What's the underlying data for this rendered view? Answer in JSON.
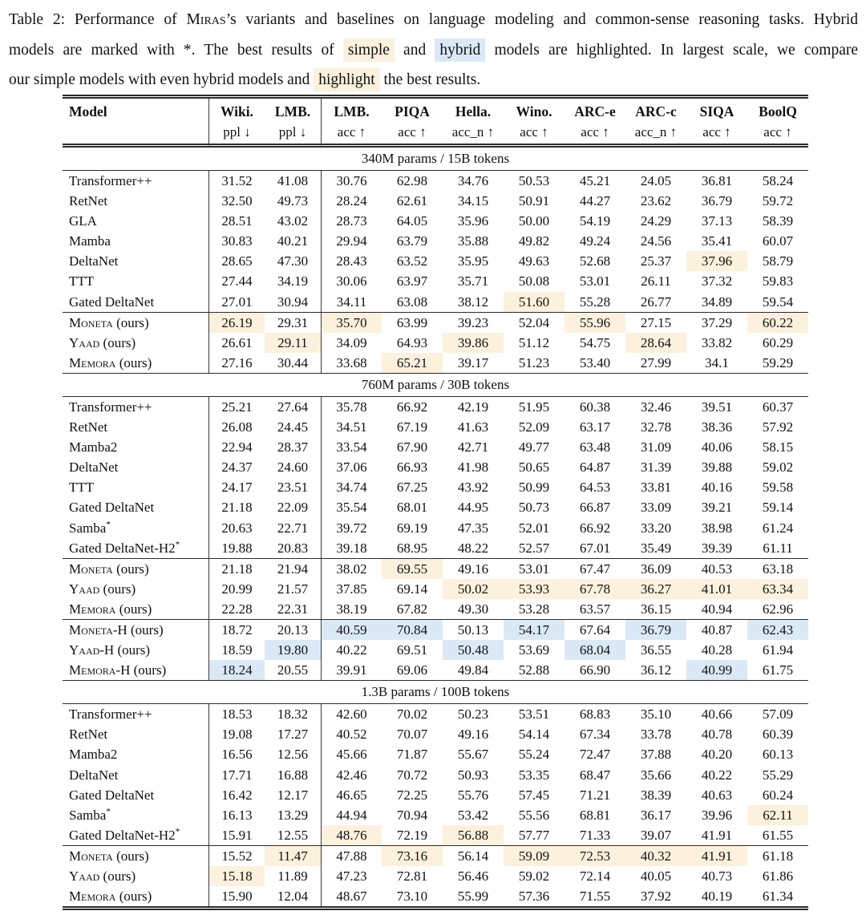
{
  "colors": {
    "highlight_yellow": "#fbf1dc",
    "highlight_blue": "#dbe9f6",
    "rule": "#2b2b2b",
    "text": "#111111",
    "background": "#ffffff"
  },
  "caption": {
    "lines": [
      {
        "justify": true,
        "segments": [
          {
            "text": "Table 2: Performance of "
          },
          {
            "text": "Miras",
            "sc": true
          },
          {
            "text": "’s variants and baselines on language modeling and common-sense reasoning tasks. Hybrid"
          }
        ]
      },
      {
        "justify": true,
        "segments": [
          {
            "text": "models are marked with *. The best results of "
          },
          {
            "text": "simple",
            "hl": "yellow"
          },
          {
            "text": " and "
          },
          {
            "text": "hybrid",
            "hl": "blue"
          },
          {
            "text": " models are highlighted. In largest scale, we compare"
          }
        ]
      },
      {
        "justify": false,
        "segments": [
          {
            "text": "our simple models with even hybrid models and "
          },
          {
            "text": "highlight",
            "hl": "yellow"
          },
          {
            "text": " the best results."
          }
        ]
      }
    ]
  },
  "table": {
    "columns": [
      {
        "label": "Model",
        "sub": ""
      },
      {
        "label": "Wiki.",
        "sub": "ppl ↓"
      },
      {
        "label": "LMB.",
        "sub": "ppl ↓"
      },
      {
        "label": "LMB.",
        "sub": "acc ↑"
      },
      {
        "label": "PIQA",
        "sub": "acc ↑"
      },
      {
        "label": "Hella.",
        "sub": "acc_n ↑"
      },
      {
        "label": "Wino.",
        "sub": "acc ↑"
      },
      {
        "label": "ARC-e",
        "sub": "acc ↑"
      },
      {
        "label": "ARC-c",
        "sub": "acc_n ↑"
      },
      {
        "label": "SIQA",
        "sub": "acc ↑"
      },
      {
        "label": "BoolQ",
        "sub": "acc ↑"
      }
    ],
    "sections": [
      {
        "label": "340M params / 15B tokens",
        "groups": [
          {
            "rows": [
              {
                "name": "Transformer++",
                "values": [
                  "31.52",
                  "41.08",
                  "30.76",
                  "62.98",
                  "34.76",
                  "50.53",
                  "45.21",
                  "24.05",
                  "36.81",
                  "58.24"
                ],
                "hl": {}
              },
              {
                "name": "RetNet",
                "values": [
                  "32.50",
                  "49.73",
                  "28.24",
                  "62.61",
                  "34.15",
                  "50.91",
                  "44.27",
                  "23.62",
                  "36.79",
                  "59.72"
                ],
                "hl": {}
              },
              {
                "name": "GLA",
                "values": [
                  "28.51",
                  "43.02",
                  "28.73",
                  "64.05",
                  "35.96",
                  "50.00",
                  "54.19",
                  "24.29",
                  "37.13",
                  "58.39"
                ],
                "hl": {}
              },
              {
                "name": "Mamba",
                "values": [
                  "30.83",
                  "40.21",
                  "29.94",
                  "63.79",
                  "35.88",
                  "49.82",
                  "49.24",
                  "24.56",
                  "35.41",
                  "60.07"
                ],
                "hl": {}
              },
              {
                "name": "DeltaNet",
                "values": [
                  "28.65",
                  "47.30",
                  "28.43",
                  "63.52",
                  "35.95",
                  "49.63",
                  "52.68",
                  "25.37",
                  "37.96",
                  "58.79"
                ],
                "hl": {
                  "8": "yellow"
                }
              },
              {
                "name": "TTT",
                "values": [
                  "27.44",
                  "34.19",
                  "30.06",
                  "63.97",
                  "35.71",
                  "50.08",
                  "53.01",
                  "26.11",
                  "37.32",
                  "59.83"
                ],
                "hl": {}
              },
              {
                "name": "Gated DeltaNet",
                "values": [
                  "27.01",
                  "30.94",
                  "34.11",
                  "63.08",
                  "38.12",
                  "51.60",
                  "55.28",
                  "26.77",
                  "34.89",
                  "59.54"
                ],
                "hl": {
                  "5": "yellow"
                }
              }
            ]
          },
          {
            "rows": [
              {
                "name": "Moneta",
                "sc": true,
                "suffix": " (ours)",
                "values": [
                  "26.19",
                  "29.31",
                  "35.70",
                  "63.99",
                  "39.23",
                  "52.04",
                  "55.96",
                  "27.15",
                  "37.29",
                  "60.22"
                ],
                "hl": {
                  "0": "yellow",
                  "2": "yellow",
                  "6": "yellow",
                  "9": "yellow"
                }
              },
              {
                "name": "Yaad",
                "sc": true,
                "suffix": " (ours)",
                "values": [
                  "26.61",
                  "29.11",
                  "34.09",
                  "64.93",
                  "39.86",
                  "51.12",
                  "54.75",
                  "28.64",
                  "33.82",
                  "60.29"
                ],
                "hl": {
                  "1": "yellow",
                  "4": "yellow",
                  "7": "yellow"
                }
              },
              {
                "name": "Memora",
                "sc": true,
                "suffix": " (ours)",
                "values": [
                  "27.16",
                  "30.44",
                  "33.68",
                  "65.21",
                  "39.17",
                  "51.23",
                  "53.40",
                  "27.99",
                  "34.1",
                  "59.29"
                ],
                "hl": {
                  "3": "yellow"
                }
              }
            ]
          }
        ]
      },
      {
        "label": "760M params / 30B tokens",
        "groups": [
          {
            "rows": [
              {
                "name": "Transformer++",
                "values": [
                  "25.21",
                  "27.64",
                  "35.78",
                  "66.92",
                  "42.19",
                  "51.95",
                  "60.38",
                  "32.46",
                  "39.51",
                  "60.37"
                ],
                "hl": {}
              },
              {
                "name": "RetNet",
                "values": [
                  "26.08",
                  "24.45",
                  "34.51",
                  "67.19",
                  "41.63",
                  "52.09",
                  "63.17",
                  "32.78",
                  "38.36",
                  "57.92"
                ],
                "hl": {}
              },
              {
                "name": "Mamba2",
                "values": [
                  "22.94",
                  "28.37",
                  "33.54",
                  "67.90",
                  "42.71",
                  "49.77",
                  "63.48",
                  "31.09",
                  "40.06",
                  "58.15"
                ],
                "hl": {}
              },
              {
                "name": "DeltaNet",
                "values": [
                  "24.37",
                  "24.60",
                  "37.06",
                  "66.93",
                  "41.98",
                  "50.65",
                  "64.87",
                  "31.39",
                  "39.88",
                  "59.02"
                ],
                "hl": {}
              },
              {
                "name": "TTT",
                "values": [
                  "24.17",
                  "23.51",
                  "34.74",
                  "67.25",
                  "43.92",
                  "50.99",
                  "64.53",
                  "33.81",
                  "40.16",
                  "59.58"
                ],
                "hl": {}
              },
              {
                "name": "Gated DeltaNet",
                "values": [
                  "21.18",
                  "22.09",
                  "35.54",
                  "68.01",
                  "44.95",
                  "50.73",
                  "66.87",
                  "33.09",
                  "39.21",
                  "59.14"
                ],
                "hl": {}
              },
              {
                "name": "Samba",
                "sup": "*",
                "values": [
                  "20.63",
                  "22.71",
                  "39.72",
                  "69.19",
                  "47.35",
                  "52.01",
                  "66.92",
                  "33.20",
                  "38.98",
                  "61.24"
                ],
                "hl": {}
              },
              {
                "name": "Gated DeltaNet-H2",
                "sup": "*",
                "values": [
                  "19.88",
                  "20.83",
                  "39.18",
                  "68.95",
                  "48.22",
                  "52.57",
                  "67.01",
                  "35.49",
                  "39.39",
                  "61.11"
                ],
                "hl": {}
              }
            ]
          },
          {
            "rows": [
              {
                "name": "Moneta",
                "sc": true,
                "suffix": " (ours)",
                "values": [
                  "21.18",
                  "21.94",
                  "38.02",
                  "69.55",
                  "49.16",
                  "53.01",
                  "67.47",
                  "36.09",
                  "40.53",
                  "63.18"
                ],
                "hl": {
                  "3": "yellow"
                }
              },
              {
                "name": "Yaad",
                "sc": true,
                "suffix": " (ours)",
                "values": [
                  "20.99",
                  "21.57",
                  "37.85",
                  "69.14",
                  "50.02",
                  "53.93",
                  "67.78",
                  "36.27",
                  "41.01",
                  "63.34"
                ],
                "hl": {
                  "4": "yellow",
                  "5": "yellow",
                  "6": "yellow",
                  "7": "yellow",
                  "8": "yellow",
                  "9": "yellow"
                }
              },
              {
                "name": "Memora",
                "sc": true,
                "suffix": " (ours)",
                "values": [
                  "22.28",
                  "22.31",
                  "38.19",
                  "67.82",
                  "49.30",
                  "53.28",
                  "63.57",
                  "36.15",
                  "40.94",
                  "62.96"
                ],
                "hl": {}
              }
            ]
          },
          {
            "rows": [
              {
                "name": "Moneta-H",
                "sc": true,
                "suffix": " (ours)",
                "values": [
                  "18.72",
                  "20.13",
                  "40.59",
                  "70.84",
                  "50.13",
                  "54.17",
                  "67.64",
                  "36.79",
                  "40.87",
                  "62.43"
                ],
                "hl": {
                  "2": "blue",
                  "3": "blue",
                  "5": "blue",
                  "7": "blue",
                  "9": "blue"
                }
              },
              {
                "name": "Yaad-H",
                "sc": true,
                "suffix": " (ours)",
                "values": [
                  "18.59",
                  "19.80",
                  "40.22",
                  "69.51",
                  "50.48",
                  "53.69",
                  "68.04",
                  "36.55",
                  "40.28",
                  "61.94"
                ],
                "hl": {
                  "1": "blue",
                  "4": "blue",
                  "6": "blue"
                }
              },
              {
                "name": "Memora-H",
                "sc": true,
                "suffix": " (ours)",
                "values": [
                  "18.24",
                  "20.55",
                  "39.91",
                  "69.06",
                  "49.84",
                  "52.88",
                  "66.90",
                  "36.12",
                  "40.99",
                  "61.75"
                ],
                "hl": {
                  "0": "blue",
                  "8": "blue"
                }
              }
            ]
          }
        ]
      },
      {
        "label": "1.3B params / 100B tokens",
        "groups": [
          {
            "rows": [
              {
                "name": "Transformer++",
                "values": [
                  "18.53",
                  "18.32",
                  "42.60",
                  "70.02",
                  "50.23",
                  "53.51",
                  "68.83",
                  "35.10",
                  "40.66",
                  "57.09"
                ],
                "hl": {}
              },
              {
                "name": "RetNet",
                "values": [
                  "19.08",
                  "17.27",
                  "40.52",
                  "70.07",
                  "49.16",
                  "54.14",
                  "67.34",
                  "33.78",
                  "40.78",
                  "60.39"
                ],
                "hl": {}
              },
              {
                "name": "Mamba2",
                "values": [
                  "16.56",
                  "12.56",
                  "45.66",
                  "71.87",
                  "55.67",
                  "55.24",
                  "72.47",
                  "37.88",
                  "40.20",
                  "60.13"
                ],
                "hl": {}
              },
              {
                "name": "DeltaNet",
                "values": [
                  "17.71",
                  "16.88",
                  "42.46",
                  "70.72",
                  "50.93",
                  "53.35",
                  "68.47",
                  "35.66",
                  "40.22",
                  "55.29"
                ],
                "hl": {}
              },
              {
                "name": "Gated DeltaNet",
                "values": [
                  "16.42",
                  "12.17",
                  "46.65",
                  "72.25",
                  "55.76",
                  "57.45",
                  "71.21",
                  "38.39",
                  "40.63",
                  "60.24"
                ],
                "hl": {}
              },
              {
                "name": "Samba",
                "sup": "*",
                "values": [
                  "16.13",
                  "13.29",
                  "44.94",
                  "70.94",
                  "53.42",
                  "55.56",
                  "68.81",
                  "36.17",
                  "39.96",
                  "62.11"
                ],
                "hl": {
                  "9": "yellow"
                }
              },
              {
                "name": "Gated DeltaNet-H2",
                "sup": "*",
                "values": [
                  "15.91",
                  "12.55",
                  "48.76",
                  "72.19",
                  "56.88",
                  "57.77",
                  "71.33",
                  "39.07",
                  "41.91",
                  "61.55"
                ],
                "hl": {
                  "2": "yellow",
                  "4": "yellow"
                }
              }
            ]
          },
          {
            "rows": [
              {
                "name": "Moneta",
                "sc": true,
                "suffix": " (ours)",
                "values": [
                  "15.52",
                  "11.47",
                  "47.88",
                  "73.16",
                  "56.14",
                  "59.09",
                  "72.53",
                  "40.32",
                  "41.91",
                  "61.18"
                ],
                "hl": {
                  "1": "yellow",
                  "3": "yellow",
                  "5": "yellow",
                  "6": "yellow",
                  "7": "yellow",
                  "8": "yellow"
                }
              },
              {
                "name": "Yaad",
                "sc": true,
                "suffix": " (ours)",
                "values": [
                  "15.18",
                  "11.89",
                  "47.23",
                  "72.81",
                  "56.46",
                  "59.02",
                  "72.14",
                  "40.05",
                  "40.73",
                  "61.86"
                ],
                "hl": {
                  "0": "yellow"
                }
              },
              {
                "name": "Memora",
                "sc": true,
                "suffix": " (ours)",
                "values": [
                  "15.90",
                  "12.04",
                  "48.67",
                  "73.10",
                  "55.99",
                  "57.36",
                  "71.55",
                  "37.92",
                  "40.19",
                  "61.34"
                ],
                "hl": {}
              }
            ]
          }
        ]
      }
    ]
  }
}
